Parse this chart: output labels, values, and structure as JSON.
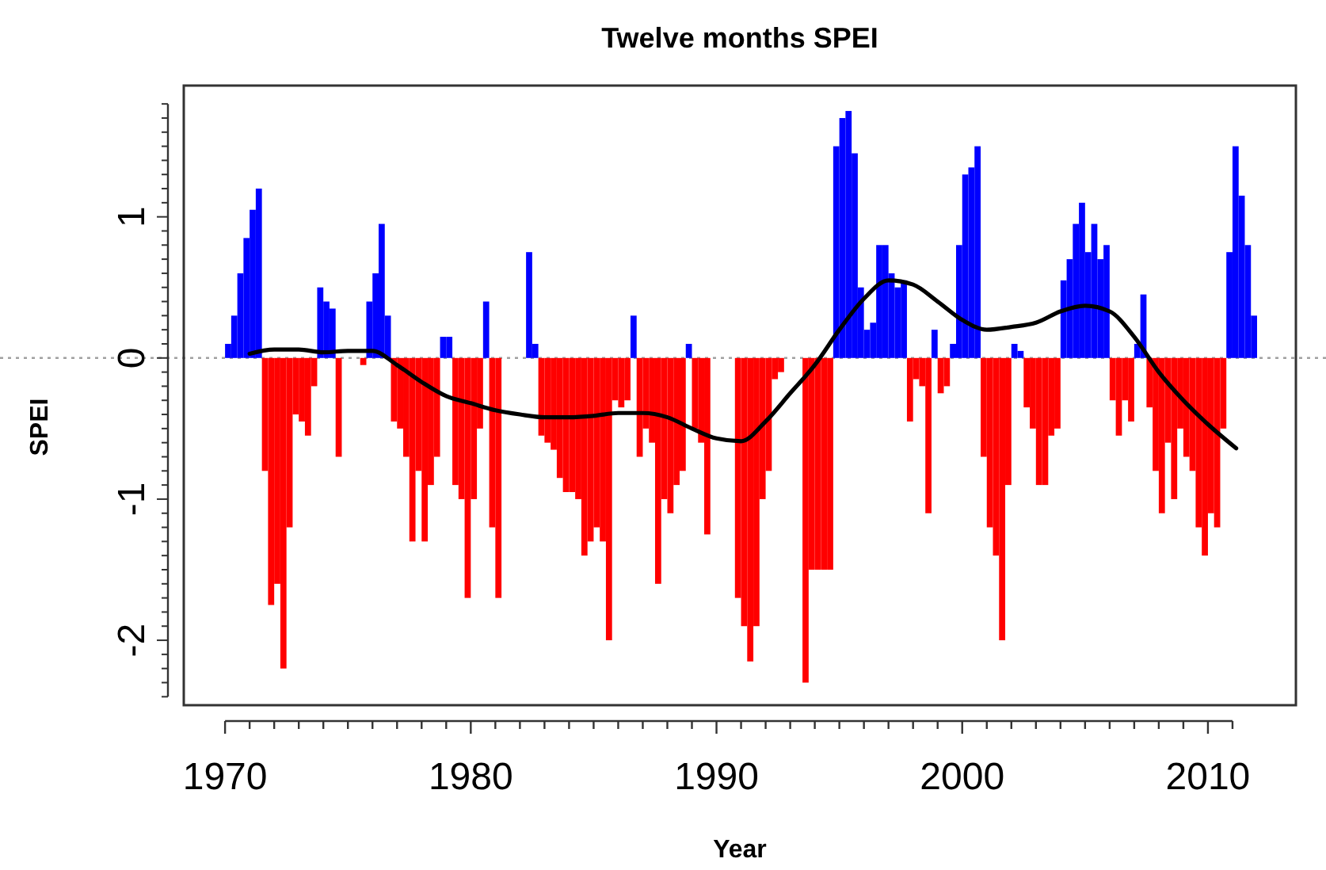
{
  "chart_data": {
    "type": "bar",
    "title": "Twelve months SPEI",
    "xlabel": "Year",
    "ylabel": "SPEI",
    "xlim": [
      1968.32,
      2013.58
    ],
    "xticks": [
      1970,
      {
        "value": 1971,
        "label": null
      },
      {
        "value": 1972,
        "label": null
      },
      {
        "value": 1973,
        "label": null
      },
      {
        "value": 1974,
        "label": null
      },
      {
        "value": 1975,
        "label": null
      },
      {
        "value": 1976,
        "label": null
      },
      {
        "value": 1977,
        "label": null
      },
      {
        "value": 1978,
        "label": null
      },
      {
        "value": 1979,
        "label": null
      },
      1980,
      {
        "value": 1981,
        "label": null
      },
      {
        "value": 1982,
        "label": null
      },
      {
        "value": 1983,
        "label": null
      },
      {
        "value": 1984,
        "label": null
      },
      {
        "value": 1985,
        "label": null
      },
      {
        "value": 1986,
        "label": null
      },
      {
        "value": 1987,
        "label": null
      },
      {
        "value": 1988,
        "label": null
      },
      {
        "value": 1989,
        "label": null
      },
      1990,
      {
        "value": 1991,
        "label": null
      },
      {
        "value": 1992,
        "label": null
      },
      {
        "value": 1993,
        "label": null
      },
      {
        "value": 1994,
        "label": null
      },
      {
        "value": 1995,
        "label": null
      },
      {
        "value": 1996,
        "label": null
      },
      {
        "value": 1997,
        "label": null
      },
      {
        "value": 1998,
        "label": null
      },
      {
        "value": 1999,
        "label": null
      },
      2000,
      {
        "value": 2001,
        "label": null
      },
      {
        "value": 2002,
        "label": null
      },
      {
        "value": 2003,
        "label": null
      },
      {
        "value": 2004,
        "label": null
      },
      {
        "value": 2005,
        "label": null
      },
      {
        "value": 2006,
        "label": null
      },
      {
        "value": 2007,
        "label": null
      },
      {
        "value": 2008,
        "label": null
      },
      {
        "value": 2009,
        "label": null
      },
      2010,
      {
        "value": 2011,
        "label": null
      }
    ],
    "ylim": [
      -2.46,
      1.93
    ],
    "yticks": [
      {
        "value": -2.4,
        "label": null
      },
      {
        "value": -2.3,
        "label": null
      },
      {
        "value": -2.2,
        "label": null
      },
      {
        "value": -2.1,
        "label": null
      },
      -2,
      {
        "value": -1.9,
        "label": null
      },
      {
        "value": -1.8,
        "label": null
      },
      {
        "value": -1.7,
        "label": null
      },
      {
        "value": -1.6,
        "label": null
      },
      {
        "value": -1.5,
        "label": null
      },
      {
        "value": -1.4,
        "label": null
      },
      {
        "value": -1.3,
        "label": null
      },
      {
        "value": -1.2,
        "label": null
      },
      {
        "value": -1.1,
        "label": null
      },
      -1,
      {
        "value": -0.9,
        "label": null
      },
      {
        "value": -0.8,
        "label": null
      },
      {
        "value": -0.7,
        "label": null
      },
      {
        "value": -0.6,
        "label": null
      },
      {
        "value": -0.5,
        "label": null
      },
      {
        "value": -0.4,
        "label": null
      },
      {
        "value": -0.3,
        "label": null
      },
      {
        "value": -0.2,
        "label": null
      },
      {
        "value": -0.1,
        "label": null
      },
      0,
      {
        "value": 0.1,
        "label": null
      },
      {
        "value": 0.2,
        "label": null
      },
      {
        "value": 0.3,
        "label": null
      },
      {
        "value": 0.4,
        "label": null
      },
      {
        "value": 0.5,
        "label": null
      },
      {
        "value": 0.6,
        "label": null
      },
      {
        "value": 0.7,
        "label": null
      },
      {
        "value": 0.8,
        "label": null
      },
      {
        "value": 0.9,
        "label": null
      },
      1,
      {
        "value": 1.1,
        "label": null
      },
      {
        "value": 1.2,
        "label": null
      },
      {
        "value": 1.3,
        "label": null
      },
      {
        "value": 1.4,
        "label": null
      },
      {
        "value": 1.5,
        "label": null
      },
      {
        "value": 1.6,
        "label": null
      },
      {
        "value": 1.7,
        "label": null
      },
      {
        "value": 1.8,
        "label": null
      }
    ],
    "ref_lines": [
      {
        "axis": "y",
        "value": 0,
        "color": "#a0a0a0",
        "line_style": "dotted"
      }
    ],
    "series": [
      {
        "x": [
          1970,
          1970.25,
          1970.5,
          1970.75,
          1971,
          1971.25,
          1971.5,
          1971.75,
          1972,
          1972.25,
          1972.5,
          1972.75,
          1973,
          1973.25,
          1973.5,
          1973.75,
          1974,
          1974.25,
          1974.5,
          1975.5,
          1975.75,
          1976,
          1976.25,
          1976.5,
          1976.75,
          1977,
          1977.25,
          1977.5,
          1977.75,
          1978,
          1978.25,
          1978.5,
          1978.75,
          1979,
          1979.25,
          1979.5,
          1979.75,
          1980,
          1980.25,
          1980.5,
          1980.75,
          1981,
          1982.25,
          1982.5,
          1982.75,
          1983,
          1983.25,
          1983.5,
          1983.75,
          1984,
          1984.25,
          1984.5,
          1984.75,
          1985,
          1985.25,
          1985.5,
          1985.75,
          1986,
          1986.25,
          1986.5,
          1986.75,
          1987,
          1987.25,
          1987.5,
          1987.75,
          1988,
          1988.25,
          1988.5,
          1988.75,
          1989,
          1989.25,
          1989.5,
          1990.75,
          1991,
          1991.25,
          1991.5,
          1991.75,
          1992,
          1992.25,
          1992.5,
          1993.5,
          1993.75,
          1994,
          1994.25,
          1994.5,
          1994.75,
          1995,
          1995.25,
          1995.5,
          1995.75,
          1996,
          1996.25,
          1996.5,
          1996.75,
          1997,
          1997.25,
          1997.5,
          1997.75,
          1998,
          1998.25,
          1998.5,
          1998.75,
          1999,
          1999.25,
          1999.5,
          1999.75,
          2000,
          2000.25,
          2000.5,
          2000.75,
          2001,
          2001.25,
          2001.5,
          2001.75,
          2002,
          2002.25,
          2002.5,
          2002.75,
          2003,
          2003.25,
          2003.5,
          2003.75,
          2004,
          2004.25,
          2004.5,
          2004.75,
          2005,
          2005.25,
          2005.5,
          2005.75,
          2006,
          2006.25,
          2006.5,
          2006.75,
          2007,
          2007.25,
          2007.5,
          2007.75,
          2008,
          2008.25,
          2008.5,
          2008.75,
          2009,
          2009.25,
          2009.5,
          2009.75,
          2010,
          2010.25,
          2010.5,
          2010.75,
          2011,
          2011.25,
          2011.5,
          2011.75
        ],
        "values": [
          0.1,
          0.3,
          0.6,
          0.85,
          1.05,
          1.2,
          -0.8,
          -1.75,
          -1.6,
          -2.2,
          -1.2,
          -0.4,
          -0.45,
          -0.55,
          -0.2,
          0.5,
          0.4,
          0.35,
          -0.7,
          -0.05,
          0.4,
          0.6,
          0.95,
          0.3,
          -0.45,
          -0.5,
          -0.7,
          -1.3,
          -0.8,
          -1.3,
          -0.9,
          -0.7,
          0.15,
          0.15,
          -0.9,
          -1.0,
          -1.7,
          -1.0,
          -0.5,
          0.4,
          -1.2,
          -1.7,
          0.75,
          0.1,
          -0.55,
          -0.6,
          -0.65,
          -0.85,
          -0.95,
          -0.95,
          -1.0,
          -1.4,
          -1.3,
          -1.2,
          -1.3,
          -2.0,
          -0.3,
          -0.35,
          -0.3,
          0.3,
          -0.7,
          -0.5,
          -0.6,
          -1.6,
          -1.0,
          -1.1,
          -0.9,
          -0.8,
          0.1,
          -0.5,
          -0.6,
          -1.25,
          -1.7,
          -1.9,
          -2.15,
          -1.9,
          -1.0,
          -0.8,
          -0.15,
          -0.1,
          -2.3,
          -1.5,
          -1.5,
          -1.5,
          -1.5,
          1.5,
          1.7,
          1.75,
          1.45,
          0.5,
          0.2,
          0.25,
          0.8,
          0.8,
          0.6,
          0.5,
          0.55,
          -0.45,
          -0.15,
          -0.2,
          -1.1,
          0.2,
          -0.25,
          -0.2,
          0.1,
          0.8,
          1.3,
          1.35,
          1.5,
          -0.7,
          -1.2,
          -1.4,
          -2.0,
          -0.9,
          0.1,
          0.05,
          -0.35,
          -0.5,
          -0.9,
          -0.9,
          -0.55,
          -0.5,
          0.55,
          0.7,
          0.95,
          1.1,
          0.75,
          0.95,
          0.7,
          0.8,
          -0.3,
          -0.55,
          -0.3,
          -0.45,
          0.1,
          0.45,
          -0.35,
          -0.8,
          -1.1,
          -0.6,
          -1.0,
          -0.5,
          -0.7,
          -0.8,
          -1.2,
          -1.4,
          -1.1,
          -1.2,
          -0.5,
          0.75,
          1.5,
          1.15,
          0.8,
          0.3
        ],
        "colors": [
          "#0000ff",
          "#0000ff",
          "#0000ff",
          "#0000ff",
          "#0000ff",
          "#0000ff",
          "#ff0000",
          "#ff0000",
          "#ff0000",
          "#ff0000",
          "#ff0000",
          "#ff0000",
          "#ff0000",
          "#ff0000",
          "#ff0000",
          "#0000ff",
          "#0000ff",
          "#0000ff",
          "#ff0000",
          "#ff0000",
          "#0000ff",
          "#0000ff",
          "#0000ff",
          "#0000ff",
          "#ff0000",
          "#ff0000",
          "#ff0000",
          "#ff0000",
          "#ff0000",
          "#ff0000",
          "#ff0000",
          "#ff0000",
          "#0000ff",
          "#0000ff",
          "#ff0000",
          "#ff0000",
          "#ff0000",
          "#ff0000",
          "#ff0000",
          "#0000ff",
          "#ff0000",
          "#ff0000",
          "#0000ff",
          "#0000ff",
          "#ff0000",
          "#ff0000",
          "#ff0000",
          "#ff0000",
          "#ff0000",
          "#ff0000",
          "#ff0000",
          "#ff0000",
          "#ff0000",
          "#ff0000",
          "#ff0000",
          "#ff0000",
          "#ff0000",
          "#ff0000",
          "#ff0000",
          "#0000ff",
          "#ff0000",
          "#ff0000",
          "#ff0000",
          "#ff0000",
          "#ff0000",
          "#ff0000",
          "#ff0000",
          "#ff0000",
          "#0000ff",
          "#ff0000",
          "#ff0000",
          "#ff0000",
          "#ff0000",
          "#ff0000",
          "#ff0000",
          "#ff0000",
          "#ff0000",
          "#ff0000",
          "#ff0000",
          "#ff0000",
          "#ff0000",
          "#ff0000",
          "#ff0000",
          "#ff0000",
          "#ff0000",
          "#0000ff",
          "#0000ff",
          "#0000ff",
          "#0000ff",
          "#0000ff",
          "#0000ff",
          "#0000ff",
          "#0000ff",
          "#0000ff",
          "#0000ff",
          "#0000ff",
          "#0000ff",
          "#ff0000",
          "#ff0000",
          "#ff0000",
          "#ff0000",
          "#0000ff",
          "#ff0000",
          "#ff0000",
          "#0000ff",
          "#0000ff",
          "#0000ff",
          "#0000ff",
          "#0000ff",
          "#ff0000",
          "#ff0000",
          "#ff0000",
          "#ff0000",
          "#ff0000",
          "#0000ff",
          "#0000ff",
          "#ff0000",
          "#ff0000",
          "#ff0000",
          "#ff0000",
          "#ff0000",
          "#ff0000",
          "#0000ff",
          "#0000ff",
          "#0000ff",
          "#0000ff",
          "#0000ff",
          "#0000ff",
          "#0000ff",
          "#0000ff",
          "#ff0000",
          "#ff0000",
          "#ff0000",
          "#ff0000",
          "#0000ff",
          "#0000ff",
          "#ff0000",
          "#ff0000",
          "#ff0000",
          "#ff0000",
          "#ff0000",
          "#ff0000",
          "#ff0000",
          "#ff0000",
          "#ff0000",
          "#ff0000",
          "#ff0000",
          "#ff0000",
          "#ff0000",
          "#0000ff",
          "#0000ff",
          "#0000ff",
          "#0000ff",
          "#0000ff"
        ]
      },
      {
        "type": "line",
        "color": "#000000",
        "x": [
          1971,
          1972,
          1973,
          1974,
          1975,
          1976,
          1977,
          1978,
          1979,
          1980,
          1981,
          1982,
          1983,
          1984,
          1985,
          1986,
          1987,
          1988,
          1989,
          1990,
          1991,
          1992,
          1993,
          1994,
          1995,
          1996,
          1997,
          1998,
          1999,
          2000,
          2001,
          2002,
          2003,
          2004,
          2005,
          2006,
          2007,
          2008,
          2009,
          2010,
          2011.15
        ],
        "values": [
          0.03,
          0.06,
          0.06,
          0.04,
          0.05,
          0.05,
          -0.05,
          -0.17,
          -0.27,
          -0.32,
          -0.37,
          -0.4,
          -0.42,
          -0.42,
          -0.41,
          -0.39,
          -0.39,
          -0.42,
          -0.5,
          -0.57,
          -0.59,
          -0.45,
          -0.25,
          -0.05,
          0.2,
          0.42,
          0.55,
          0.52,
          0.4,
          0.27,
          0.2,
          0.22,
          0.25,
          0.33,
          0.37,
          0.33,
          0.15,
          -0.1,
          -0.3,
          -0.47,
          -0.64
        ]
      }
    ]
  }
}
